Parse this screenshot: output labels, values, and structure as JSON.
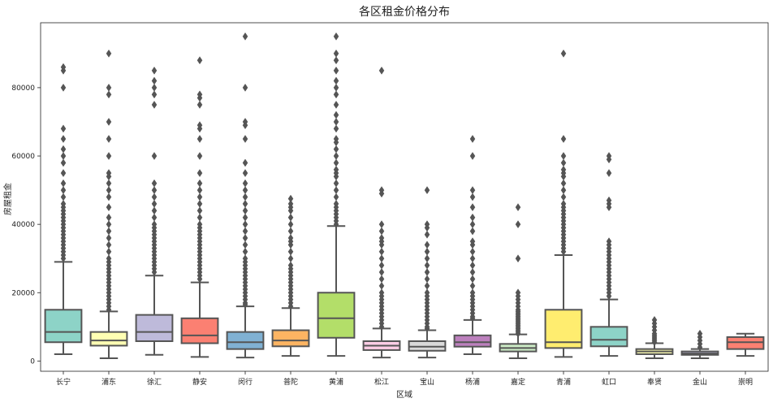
{
  "chart_data": {
    "type": "box",
    "title": "各区租金价格分布",
    "xlabel": "区域",
    "ylabel": "房屋租金",
    "ylim": [
      -3000,
      99000
    ],
    "yticks": [
      0,
      20000,
      40000,
      60000,
      80000
    ],
    "ytick_labels": [
      "0",
      "20000",
      "40000",
      "60000",
      "80000"
    ],
    "grid": false,
    "categories": [
      "长宁",
      "浦东",
      "徐汇",
      "静安",
      "闵行",
      "普陀",
      "黄浦",
      "松江",
      "宝山",
      "杨浦",
      "嘉定",
      "青浦",
      "虹口",
      "奉贤",
      "金山",
      "崇明"
    ],
    "boxes": [
      {
        "name": "长宁",
        "color": "#8dd3c7",
        "whislo": 2000,
        "q1": 5500,
        "median": 8500,
        "q3": 15000,
        "whishi": 29000,
        "fliers": [
          30000,
          31000,
          32000,
          33000,
          34000,
          35000,
          36000,
          37000,
          38000,
          39000,
          40000,
          41000,
          42000,
          43000,
          44000,
          45000,
          46000,
          48000,
          50000,
          52000,
          55000,
          58000,
          60000,
          62000,
          65000,
          68000,
          80000,
          85000,
          86000
        ]
      },
      {
        "name": "浦东",
        "color": "#ffffb3",
        "whislo": 800,
        "q1": 4500,
        "median": 6000,
        "q3": 8500,
        "whishi": 14500,
        "fliers": [
          15000,
          16000,
          17000,
          18000,
          19000,
          20000,
          21000,
          22000,
          23000,
          24000,
          25000,
          26000,
          27000,
          28000,
          29000,
          30000,
          32000,
          34000,
          36000,
          38000,
          40000,
          42000,
          45000,
          48000,
          50000,
          52000,
          54000,
          55000,
          60000,
          65000,
          70000,
          78000,
          80000,
          90000
        ]
      },
      {
        "name": "徐汇",
        "color": "#bebada",
        "whislo": 1800,
        "q1": 5800,
        "median": 8500,
        "q3": 13500,
        "whishi": 25000,
        "fliers": [
          26000,
          27000,
          28000,
          29000,
          30000,
          31000,
          32000,
          33000,
          34000,
          35000,
          36000,
          37000,
          38000,
          39000,
          40000,
          42000,
          44000,
          46000,
          48000,
          50000,
          52000,
          60000,
          75000,
          78000,
          80000,
          82000,
          85000
        ]
      },
      {
        "name": "静安",
        "color": "#fb8072",
        "whislo": 1200,
        "q1": 5200,
        "median": 7500,
        "q3": 12500,
        "whishi": 23000,
        "fliers": [
          24000,
          25000,
          26000,
          27000,
          28000,
          29000,
          30000,
          31000,
          32000,
          33000,
          34000,
          35000,
          36000,
          37000,
          38000,
          39000,
          40000,
          42000,
          44000,
          46000,
          48000,
          50000,
          52000,
          55000,
          60000,
          65000,
          68000,
          69000,
          75000,
          77000,
          78000,
          88000
        ]
      },
      {
        "name": "闵行",
        "color": "#80b1d3",
        "whislo": 1000,
        "q1": 3500,
        "median": 5500,
        "q3": 8500,
        "whishi": 16000,
        "fliers": [
          16500,
          17000,
          18000,
          19000,
          20000,
          21000,
          22000,
          23000,
          24000,
          25000,
          26000,
          27000,
          28000,
          29000,
          30000,
          32000,
          34000,
          36000,
          38000,
          40000,
          42000,
          44000,
          46000,
          48000,
          50000,
          52000,
          55000,
          58000,
          65000,
          69000,
          70000,
          80000,
          95000
        ]
      },
      {
        "name": "普陀",
        "color": "#fdb462",
        "whislo": 1500,
        "q1": 4300,
        "median": 6000,
        "q3": 9000,
        "whishi": 15500,
        "fliers": [
          16000,
          17000,
          18000,
          19000,
          20000,
          21000,
          22000,
          23000,
          24000,
          25000,
          26000,
          27000,
          28000,
          30000,
          32000,
          34000,
          35000,
          36000,
          38000,
          40000,
          42000,
          44000,
          45000,
          46000,
          47500
        ]
      },
      {
        "name": "黄浦",
        "color": "#b3de69",
        "whislo": 1500,
        "q1": 6800,
        "median": 12500,
        "q3": 20000,
        "whishi": 39500,
        "fliers": [
          40000,
          41000,
          42000,
          43000,
          44000,
          45000,
          46000,
          48000,
          50000,
          52000,
          54000,
          55000,
          56000,
          58000,
          60000,
          62000,
          64000,
          65000,
          68000,
          70000,
          72000,
          75000,
          78000,
          80000,
          82000,
          85000,
          88000,
          90000,
          95000
        ]
      },
      {
        "name": "松江",
        "color": "#fccde5",
        "whislo": 1000,
        "q1": 3200,
        "median": 4500,
        "q3": 5800,
        "whishi": 9500,
        "fliers": [
          10000,
          11000,
          12000,
          13000,
          14000,
          15000,
          16000,
          17000,
          18000,
          19000,
          20000,
          22000,
          24000,
          26000,
          28000,
          30000,
          32000,
          34000,
          35000,
          36000,
          38000,
          40000,
          49000,
          50000,
          85000
        ]
      },
      {
        "name": "宝山",
        "color": "#d9d9d9",
        "whislo": 1000,
        "q1": 3000,
        "median": 4200,
        "q3": 5800,
        "whishi": 9000,
        "fliers": [
          9500,
          10000,
          11000,
          12000,
          13000,
          14000,
          15000,
          16000,
          17000,
          18000,
          19000,
          20000,
          22000,
          24000,
          26000,
          28000,
          30000,
          32000,
          34000,
          37000,
          39000,
          40000,
          50000
        ]
      },
      {
        "name": "杨浦",
        "color": "#bc80bd",
        "whislo": 2000,
        "q1": 4200,
        "median": 5500,
        "q3": 7500,
        "whishi": 12000,
        "fliers": [
          12500,
          13000,
          14000,
          15000,
          16000,
          17000,
          18000,
          19000,
          20000,
          22000,
          24000,
          26000,
          28000,
          30000,
          32000,
          34000,
          35000,
          38000,
          40000,
          42000,
          45000,
          48000,
          50000,
          60000,
          65000
        ]
      },
      {
        "name": "嘉定",
        "color": "#ccebc5",
        "whislo": 800,
        "q1": 2800,
        "median": 3800,
        "q3": 5000,
        "whishi": 7800,
        "fliers": [
          8000,
          8500,
          9000,
          9500,
          10000,
          10500,
          11000,
          11500,
          12000,
          12500,
          13000,
          13500,
          14000,
          14500,
          15000,
          16000,
          17000,
          18000,
          19000,
          20000,
          30000,
          40000,
          45000
        ]
      },
      {
        "name": "青浦",
        "color": "#ffed6f",
        "whislo": 1200,
        "q1": 3800,
        "median": 5500,
        "q3": 15000,
        "whishi": 31000,
        "fliers": [
          32000,
          33000,
          34000,
          35000,
          36000,
          37000,
          38000,
          39000,
          40000,
          41000,
          42000,
          43000,
          44000,
          45000,
          46000,
          48000,
          50000,
          52000,
          54000,
          55000,
          56000,
          58000,
          60000,
          65000,
          90000
        ]
      },
      {
        "name": "虹口",
        "color": "#8dd3c7",
        "whislo": 1500,
        "q1": 4300,
        "median": 6200,
        "q3": 10000,
        "whishi": 18000,
        "fliers": [
          19000,
          20000,
          21000,
          22000,
          23000,
          24000,
          25000,
          26000,
          27000,
          28000,
          29000,
          30000,
          31000,
          32000,
          33000,
          34000,
          35000,
          45000,
          46000,
          47000,
          55000,
          59000,
          60000
        ]
      },
      {
        "name": "奉贤",
        "color": "#ffffb3",
        "whislo": 800,
        "q1": 2000,
        "median": 2800,
        "q3": 3500,
        "whishi": 5200,
        "fliers": [
          5500,
          6000,
          6500,
          7000,
          7500,
          8000,
          9000,
          10000,
          11000,
          12000
        ]
      },
      {
        "name": "金山",
        "color": "#bebada",
        "whislo": 800,
        "q1": 1800,
        "median": 2200,
        "q3": 2800,
        "whishi": 3500,
        "fliers": [
          4000,
          5000,
          6000,
          7000,
          8000
        ]
      },
      {
        "name": "崇明",
        "color": "#fb8072",
        "whislo": 1500,
        "q1": 3500,
        "median": 5500,
        "q3": 7000,
        "whishi": 8000,
        "fliers": []
      }
    ]
  }
}
